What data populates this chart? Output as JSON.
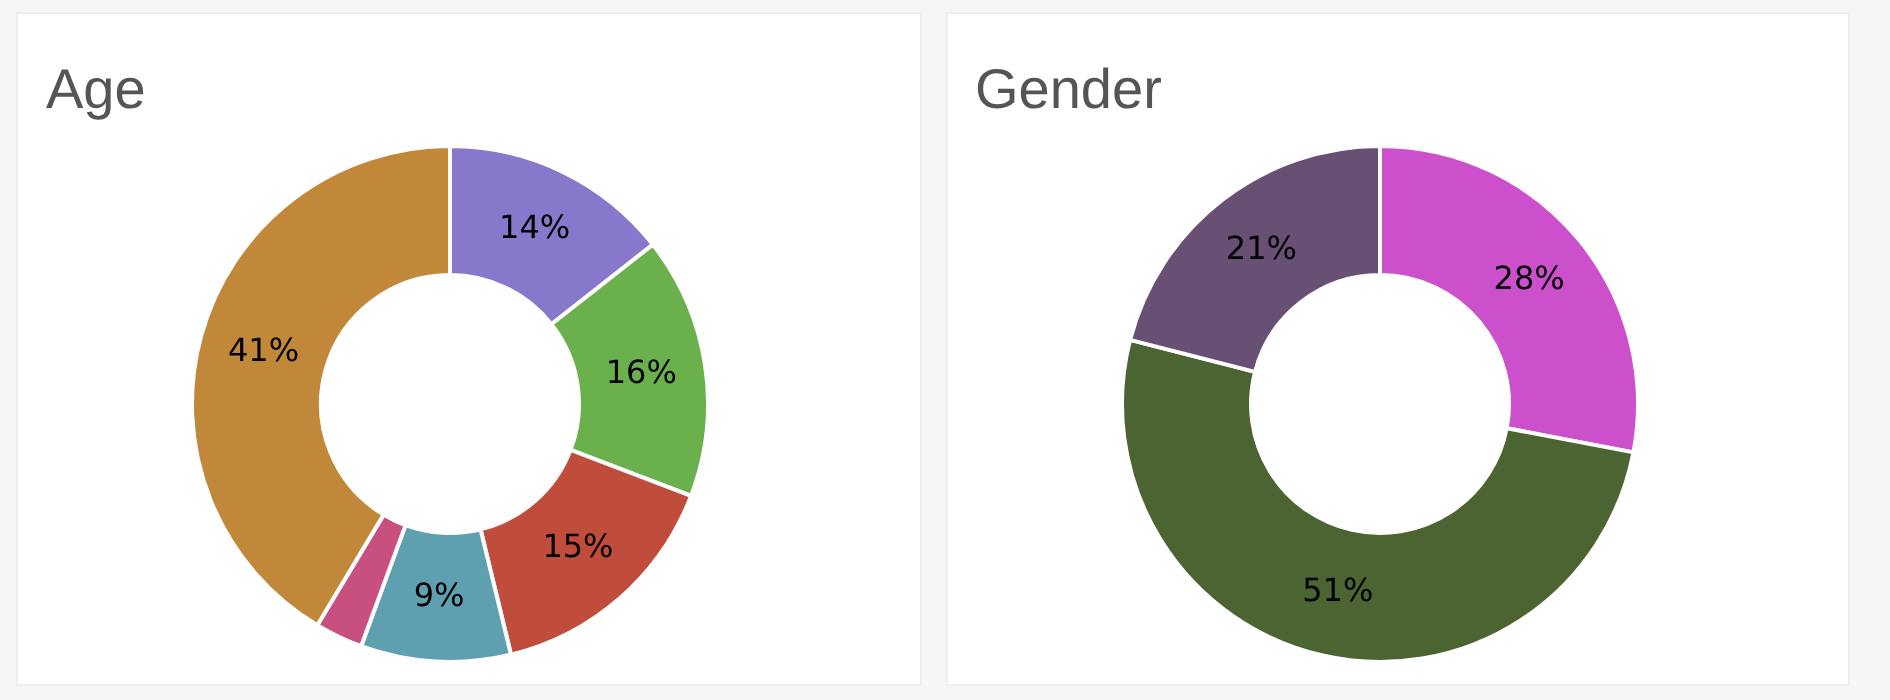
{
  "chart_data": [
    {
      "type": "donut",
      "title": "Age",
      "categories": [
        null,
        null,
        null,
        null,
        null,
        null
      ],
      "values": [
        14.4,
        16.4,
        15.4,
        9.4,
        3,
        41.4
      ],
      "colors": [
        "#8878cc",
        "#6ab04c",
        "#c04c3c",
        "#5fa0b0",
        "#c85080",
        "#c08838"
      ],
      "value_labels": [
        "14%",
        "16%",
        "15%",
        "9%",
        null,
        "41%"
      ],
      "legend": false
    },
    {
      "type": "donut",
      "title": "Gender",
      "categories": [
        null,
        null,
        null
      ],
      "values": [
        28,
        51,
        21
      ],
      "colors": [
        "#cc4fcc",
        "#4b6432",
        "#684f74"
      ],
      "value_labels": [
        "28%",
        "51%",
        "21%"
      ],
      "legend": false
    }
  ]
}
